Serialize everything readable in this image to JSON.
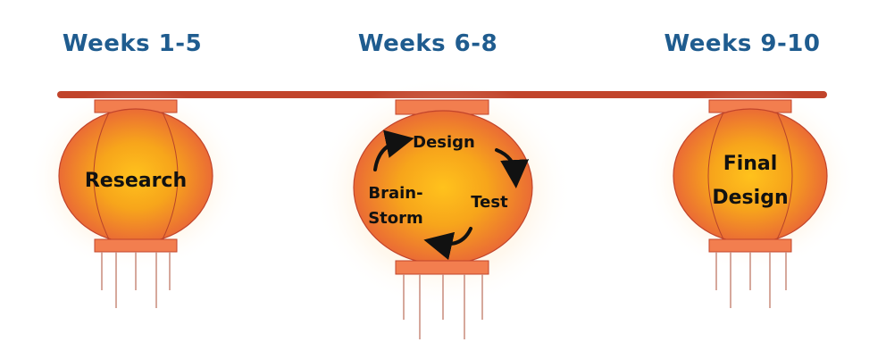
{
  "weeks": [
    "Weeks 1-5",
    "Weeks 6-8",
    "Weeks 9-10"
  ],
  "lanterns": {
    "research": {
      "label": "Research"
    },
    "cycle": {
      "design": "Design",
      "test": "Test",
      "brain_1": "Brain-",
      "brain_2": "Storm"
    },
    "final": {
      "line1": "Final",
      "line2": "Design"
    }
  },
  "colors": {
    "week_text": "#1f5c8f",
    "rod": "#c1442b",
    "lantern_body": "#e8603a",
    "lantern_glow": "#f7a51b",
    "lantern_cap": "#f27e4f",
    "tassel": "#c98a7b"
  },
  "icons": [
    "cycle-arrow-icon"
  ]
}
